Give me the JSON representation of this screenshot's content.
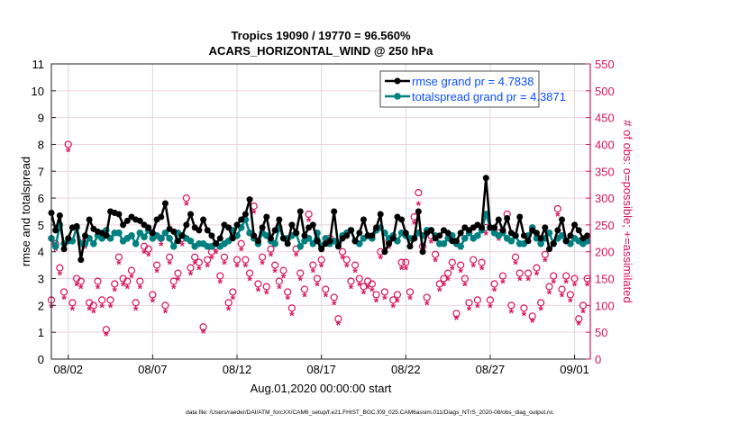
{
  "chart_data": {
    "type": "line",
    "title": [
      "Tropics 19090 / 19770 = 96.560%",
      "ACARS_HORIZONTAL_WIND @ 250 hPa"
    ],
    "xlabel": "Aug.01,2020 00:00:00 start",
    "ylabel": "rmse and totalspread",
    "ylabel_right": "# of obs: o=possible; +=assimilated",
    "footer": "data file: /Users/raeder/DAI/ATM_forcXX/CAM6_setup/f.e21.FHIST_BGC.f09_025.CAM6assim.011/Diags_NTrS_2020-08/obs_diag_output.nc",
    "xlim_days": [
      0,
      31.93
    ],
    "x_step_days": 0.25,
    "x_ticks": [
      {
        "day": 1,
        "label": "08/02"
      },
      {
        "day": 6,
        "label": "08/07"
      },
      {
        "day": 11,
        "label": "08/12"
      },
      {
        "day": 16,
        "label": "08/17"
      },
      {
        "day": 21,
        "label": "08/22"
      },
      {
        "day": 26,
        "label": "08/27"
      },
      {
        "day": 31,
        "label": "09/01"
      }
    ],
    "ylim": [
      0,
      11
    ],
    "y_ticks": [
      "0",
      "1",
      "2",
      "3",
      "4",
      "5",
      "6",
      "7",
      "8",
      "9",
      "10",
      "11"
    ],
    "ylim_right": [
      0,
      550
    ],
    "y_ticks_right": [
      "0",
      "50",
      "100",
      "150",
      "200",
      "250",
      "300",
      "350",
      "400",
      "450",
      "500",
      "550"
    ],
    "grid": true,
    "legend_position": "top-right",
    "colors": {
      "rmse": "#000000",
      "spread": "#008080",
      "obs": "#d6145f",
      "legend_text": "#0a50ff",
      "grid_h": "#ecd3dc",
      "grid_v": "#d8d8d8"
    },
    "series": [
      {
        "name": "rmse grand pr = 4.7838",
        "values": [
          5.45,
          4.8,
          5.35,
          4.1,
          4.5,
          4.9,
          4.95,
          3.7,
          4.6,
          5.2,
          4.85,
          4.75,
          4.7,
          4.6,
          5.5,
          5.45,
          5.4,
          5.0,
          5.15,
          5.3,
          5.2,
          5.15,
          5.0,
          4.9,
          4.7,
          5.2,
          5.3,
          5.8,
          4.85,
          4.75,
          4.4,
          4.6,
          5.0,
          5.4,
          4.9,
          4.8,
          5.2,
          4.8,
          4.6,
          4.3,
          4.5,
          5.0,
          4.9,
          4.5,
          5.0,
          5.2,
          5.4,
          5.95,
          4.6,
          4.4,
          4.9,
          5.3,
          4.5,
          4.8,
          5.2,
          4.5,
          4.3,
          5.0,
          4.7,
          5.5,
          4.6,
          4.9,
          5.0,
          4.4,
          4.1,
          4.3,
          4.4,
          5.5,
          4.2,
          4.5,
          4.6,
          4.8,
          4.4,
          4.7,
          5.2,
          4.6,
          4.6,
          4.9,
          5.4,
          4.0,
          4.3,
          4.5,
          5.3,
          5.2,
          4.7,
          4.2,
          4.5,
          5.5,
          4.0,
          4.7,
          4.8,
          4.5,
          4.6,
          4.8,
          4.7,
          4.4,
          4.4,
          4.7,
          4.9,
          4.8,
          4.9,
          5.0,
          4.9,
          6.75,
          4.9,
          4.9,
          5.2,
          4.8,
          5.25,
          4.7,
          4.6,
          5.3,
          4.6,
          4.4,
          4.8,
          4.7,
          4.5,
          4.9,
          4.1,
          4.3,
          4.8,
          5.2,
          4.4,
          4.6,
          5.0,
          4.8,
          4.5,
          4.6
        ]
      },
      {
        "name": "totalspread grand pr = 4.3871",
        "values": [
          4.5,
          4.2,
          5.0,
          4.3,
          4.4,
          4.4,
          4.9,
          4.3,
          4.3,
          4.5,
          4.3,
          4.6,
          4.5,
          4.8,
          4.5,
          4.7,
          4.7,
          4.4,
          4.5,
          4.6,
          4.3,
          4.7,
          4.55,
          4.8,
          4.5,
          4.6,
          4.5,
          4.7,
          4.5,
          4.2,
          4.7,
          4.6,
          4.5,
          4.4,
          4.2,
          4.3,
          4.3,
          4.2,
          4.2,
          4.3,
          4.2,
          4.3,
          4.4,
          4.8,
          4.6,
          4.9,
          5.2,
          4.7,
          4.5,
          4.3,
          4.7,
          4.6,
          4.4,
          4.3,
          4.9,
          4.5,
          4.5,
          4.6,
          4.7,
          4.2,
          4.4,
          4.5,
          4.3,
          4.7,
          4.2,
          4.5,
          4.3,
          4.4,
          4.3,
          4.6,
          4.7,
          4.8,
          4.4,
          4.3,
          4.5,
          4.6,
          4.5,
          4.8,
          4.9,
          4.7,
          4.5,
          4.6,
          4.4,
          4.7,
          4.6,
          4.5,
          4.5,
          4.7,
          4.6,
          4.8,
          4.8,
          4.6,
          4.3,
          4.3,
          4.5,
          4.6,
          4.3,
          4.2,
          4.5,
          4.7,
          4.5,
          4.6,
          4.8,
          5.4,
          4.9,
          4.7,
          4.6,
          4.7,
          4.5,
          4.4,
          4.6,
          4.3,
          4.3,
          4.6,
          4.9,
          4.5,
          4.3,
          4.5,
          4.7,
          4.3,
          4.5,
          4.6,
          4.4,
          4.3,
          4.5,
          4.4,
          4.3,
          4.4
        ]
      }
    ],
    "obs_possible": [
      110,
      215,
      170,
      125,
      400,
      105,
      150,
      145,
      220,
      105,
      100,
      145,
      110,
      55,
      110,
      140,
      190,
      150,
      145,
      165,
      105,
      145,
      210,
      205,
      120,
      175,
      225,
      100,
      190,
      145,
      160,
      225,
      300,
      170,
      190,
      180,
      60,
      185,
      200,
      210,
      155,
      190,
      105,
      125,
      185,
      215,
      185,
      160,
      285,
      140,
      190,
      135,
      205,
      175,
      145,
      165,
      125,
      95,
      205,
      160,
      130,
      270,
      175,
      150,
      185,
      130,
      225,
      115,
      75,
      200,
      185,
      145,
      175,
      150,
      135,
      145,
      140,
      120,
      200,
      125,
      220,
      110,
      120,
      180,
      180,
      125,
      265,
      310,
      210,
      115,
      230,
      195,
      140,
      150,
      160,
      180,
      85,
      175,
      150,
      105,
      185,
      110,
      180,
      245,
      110,
      140,
      235,
      155,
      270,
      100,
      190,
      160,
      95,
      160,
      80,
      170,
      105,
      195,
      135,
      155,
      280,
      130,
      155,
      120,
      150,
      75,
      100,
      150
    ],
    "obs_assimilated": [
      100,
      205,
      160,
      115,
      390,
      95,
      140,
      135,
      210,
      95,
      90,
      135,
      100,
      47,
      100,
      130,
      180,
      140,
      135,
      155,
      95,
      135,
      200,
      195,
      110,
      165,
      215,
      90,
      180,
      135,
      150,
      215,
      290,
      160,
      180,
      170,
      52,
      175,
      190,
      200,
      145,
      180,
      95,
      115,
      175,
      205,
      175,
      150,
      275,
      130,
      180,
      125,
      195,
      165,
      135,
      155,
      115,
      85,
      195,
      150,
      120,
      260,
      165,
      140,
      175,
      120,
      215,
      105,
      67,
      190,
      175,
      135,
      165,
      140,
      125,
      135,
      130,
      110,
      190,
      115,
      210,
      100,
      110,
      170,
      170,
      115,
      255,
      290,
      200,
      105,
      220,
      185,
      130,
      140,
      150,
      170,
      77,
      165,
      140,
      95,
      175,
      100,
      170,
      235,
      100,
      130,
      225,
      145,
      260,
      90,
      180,
      150,
      85,
      150,
      72,
      160,
      95,
      185,
      125,
      145,
      270,
      120,
      145,
      110,
      140,
      67,
      90,
      140
    ]
  }
}
